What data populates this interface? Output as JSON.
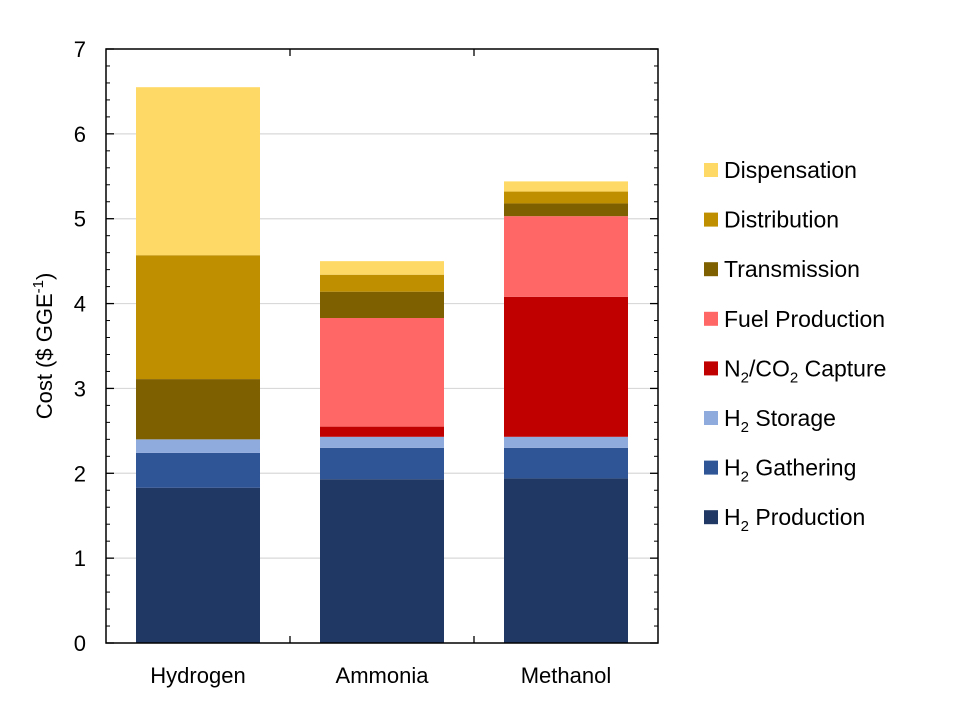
{
  "chart_data": {
    "type": "bar",
    "stacked": true,
    "categories": [
      "Hydrogen",
      "Ammonia",
      "Methanol"
    ],
    "ylabel": {
      "main": "Cost ($ GGE",
      "sup": "-1",
      "tail": ")"
    },
    "ylim": [
      0,
      7
    ],
    "yticks": [
      "0",
      "1",
      "2",
      "3",
      "4",
      "5",
      "6",
      "7"
    ],
    "grid": true,
    "legend_position": "right",
    "series": [
      {
        "name": "H2 Production",
        "legend": [
          "H",
          "2",
          " Production"
        ],
        "color": "#1f3864",
        "values": [
          1.83,
          1.93,
          1.94
        ]
      },
      {
        "name": "H2 Gathering",
        "legend": [
          "H",
          "2",
          " Gathering"
        ],
        "color": "#2f5597",
        "values": [
          0.41,
          0.37,
          0.36
        ]
      },
      {
        "name": "H2 Storage",
        "legend": [
          "H",
          "2",
          " Storage"
        ],
        "color": "#8faadc",
        "values": [
          0.16,
          0.13,
          0.13
        ]
      },
      {
        "name": "N2/CO2 Capture",
        "legend": [
          "N",
          "2",
          "/CO",
          "2",
          " Capture"
        ],
        "color": "#c00000",
        "values": [
          0.0,
          0.12,
          1.65
        ]
      },
      {
        "name": "Fuel Production",
        "legend": [
          "Fuel Production"
        ],
        "color": "#ff6666",
        "values": [
          0.0,
          1.28,
          0.95
        ]
      },
      {
        "name": "Transmission",
        "legend": [
          "Transmission"
        ],
        "color": "#7f6000",
        "values": [
          0.71,
          0.31,
          0.15
        ]
      },
      {
        "name": "Distribution",
        "legend": [
          "Distribution"
        ],
        "color": "#bf8f00",
        "values": [
          1.46,
          0.2,
          0.14
        ]
      },
      {
        "name": "Dispensation",
        "legend": [
          "Dispensation"
        ],
        "color": "#ffd966",
        "values": [
          1.98,
          0.16,
          0.12
        ]
      }
    ]
  }
}
